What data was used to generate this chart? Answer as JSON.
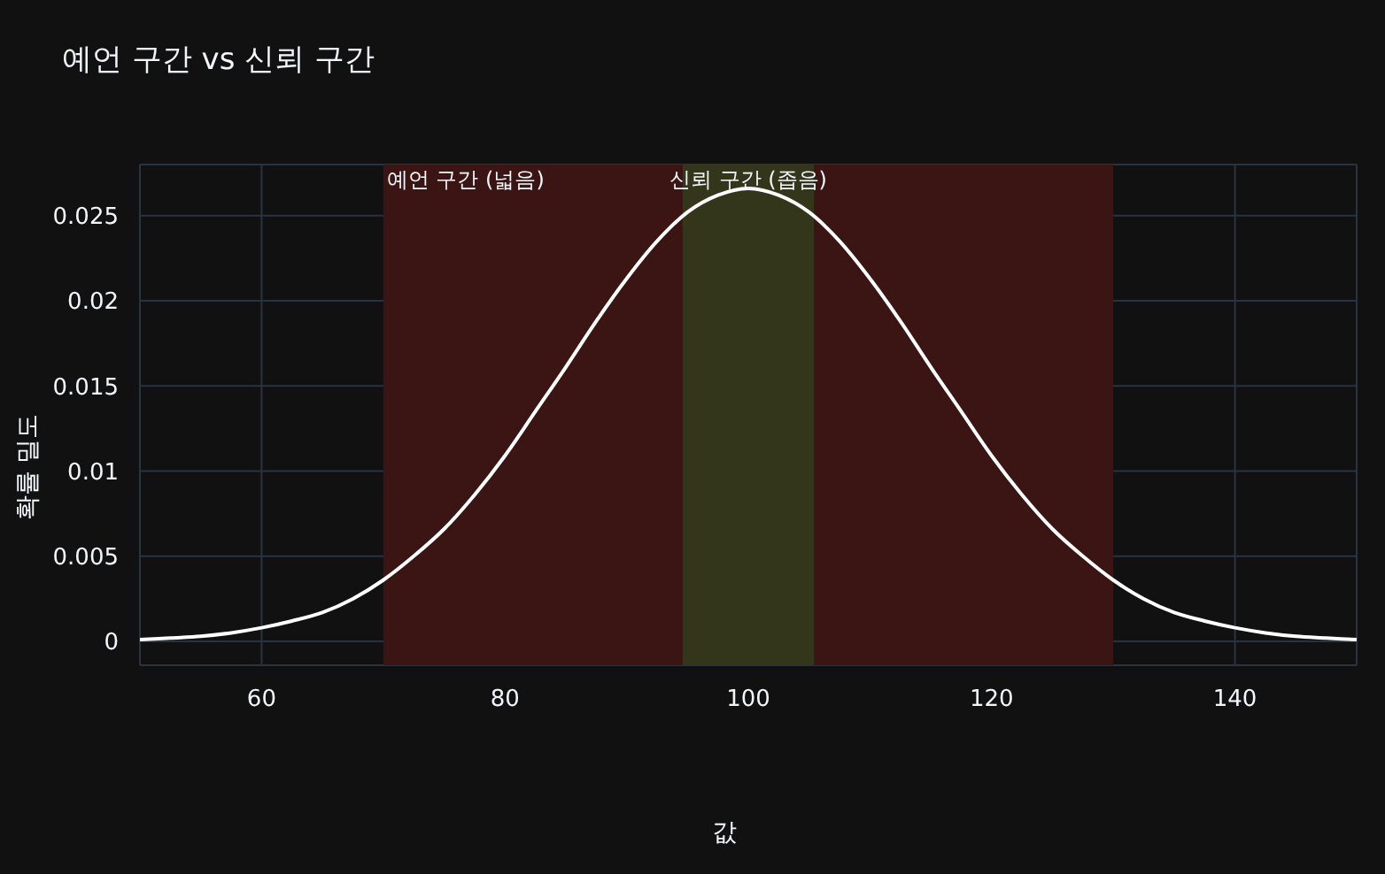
{
  "chart_data": {
    "type": "line",
    "title": "예언 구간 vs 신뢰 구간",
    "xlabel": "값",
    "ylabel": "확률 밀도",
    "x": [
      50,
      52.5,
      55,
      57.5,
      60,
      62.5,
      65,
      67.5,
      70,
      72.5,
      75,
      77.5,
      80,
      82.5,
      85,
      87.5,
      90,
      92.5,
      95,
      97.5,
      100,
      102.5,
      105,
      107.5,
      110,
      112.5,
      115,
      117.5,
      120,
      122.5,
      125,
      127.5,
      130,
      132.5,
      135,
      137.5,
      140,
      142.5,
      145,
      147.5,
      150
    ],
    "series": [
      {
        "color": "#ffffff",
        "values": [
          0.0001,
          0.0002,
          0.0003,
          0.0005,
          0.0008,
          0.0012,
          0.0017,
          0.0025,
          0.0036,
          0.005,
          0.0066,
          0.0086,
          0.0109,
          0.0135,
          0.0161,
          0.0188,
          0.0213,
          0.0235,
          0.0252,
          0.0262,
          0.0266,
          0.0262,
          0.0252,
          0.0235,
          0.0213,
          0.0188,
          0.0161,
          0.0135,
          0.0109,
          0.0086,
          0.0066,
          0.005,
          0.0036,
          0.0025,
          0.0017,
          0.0012,
          0.0008,
          0.0005,
          0.0003,
          0.0002,
          0.0001
        ]
      }
    ],
    "bands": [
      {
        "axis": "x",
        "from": 70,
        "to": 130,
        "label": "예언 구간 (넓음)",
        "color": "#3b1414"
      },
      {
        "axis": "x",
        "from": 94.6,
        "to": 105.4,
        "label": "신뢰 구간 (좁음)",
        "color": "#33361a"
      }
    ],
    "xlim": [
      50,
      150
    ],
    "xticks": [
      60,
      80,
      100,
      120,
      140
    ],
    "ylim": [
      -0.0014,
      0.028
    ],
    "yticks": [
      0,
      0.005,
      0.01,
      0.015,
      0.02,
      0.025
    ],
    "grid": true,
    "marker": "none",
    "line_style": "solid",
    "legend": false
  }
}
